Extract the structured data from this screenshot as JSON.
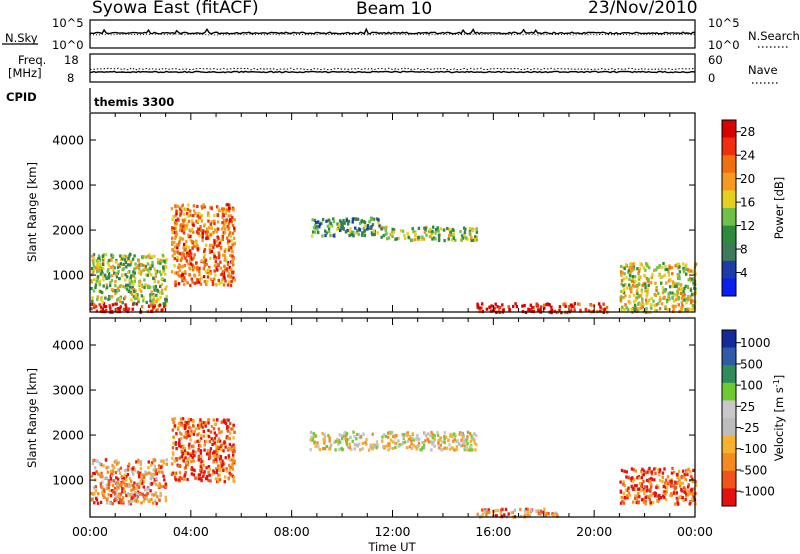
{
  "header": {
    "station": "Syowa East (fitACF)",
    "beam": "Beam 10",
    "date": "23/Nov/2010"
  },
  "top_panels": {
    "nsky_label": "N.Sky",
    "nsky_ticks": [
      "10^5",
      "10^0"
    ],
    "nsearch_label": "N.Search",
    "nsearch_ticks": [
      "10^5",
      "10^0"
    ],
    "freq_label_1": "Freq.",
    "freq_label_2": "[MHz]",
    "freq_ticks": [
      "18",
      "8"
    ],
    "nave_label": "Nave",
    "nave_ticks": [
      "60",
      "0"
    ],
    "cpid_label": "CPID",
    "cpid_value": "themis 3300"
  },
  "colors": {
    "power": [
      "#0a1ef0",
      "#1e3ca8",
      "#3c7a5a",
      "#2e8b3e",
      "#6fc04a",
      "#e6d01e",
      "#f59a1e",
      "#f07010",
      "#ee2e0c",
      "#d80000"
    ],
    "velocity": [
      "#e41010",
      "#f0541a",
      "#f58a20",
      "#f8b030",
      "#bdbdbd",
      "#c8c8c8",
      "#6fca2e",
      "#2e8b5a",
      "#2e5aa8",
      "#142a9a"
    ]
  },
  "chart_data": [
    {
      "type": "heatmap",
      "name": "power",
      "ylabel": "Slant Range [km]",
      "xlabel": "Time UT",
      "x_ticks": [
        "00:00",
        "04:00",
        "08:00",
        "12:00",
        "16:00",
        "20:00",
        "00:00"
      ],
      "xlim": [
        0,
        24
      ],
      "y_ticks": [
        "1000",
        "2000",
        "3000",
        "4000"
      ],
      "ylim": [
        180,
        4600
      ],
      "colorbar_label": "Power [dB]",
      "colorbar_ticks": [
        "4",
        "8",
        "12",
        "16",
        "20",
        "24",
        "28"
      ],
      "colorbar_range": [
        0,
        30
      ],
      "echo_regions": [
        {
          "t": [
            0.0,
            3.0
          ],
          "r": [
            200,
            400
          ],
          "level": 28
        },
        {
          "t": [
            0.0,
            3.0
          ],
          "r": [
            400,
            1500
          ],
          "level": 12
        },
        {
          "t": [
            3.2,
            5.7
          ],
          "r": [
            800,
            2600
          ],
          "level": 20
        },
        {
          "t": [
            8.7,
            11.5
          ],
          "r": [
            1900,
            2300
          ],
          "level": 8
        },
        {
          "t": [
            11.5,
            15.3
          ],
          "r": [
            1800,
            2100
          ],
          "level": 12
        },
        {
          "t": [
            15.3,
            18.5
          ],
          "r": [
            200,
            400
          ],
          "level": 28
        },
        {
          "t": [
            18.5,
            20.5
          ],
          "r": [
            200,
            400
          ],
          "level": 24
        },
        {
          "t": [
            21.0,
            24.0
          ],
          "r": [
            200,
            1300
          ],
          "level": 16
        }
      ]
    },
    {
      "type": "heatmap",
      "name": "velocity",
      "ylabel": "Slant Range [km]",
      "xlabel": "Time UT",
      "x_ticks": [
        "00:00",
        "04:00",
        "08:00",
        "12:00",
        "16:00",
        "20:00",
        "00:00"
      ],
      "xlim": [
        0,
        24
      ],
      "y_ticks": [
        "1000",
        "2000",
        "3000",
        "4000"
      ],
      "ylim": [
        180,
        4600
      ],
      "colorbar_label": "Velocity [m s",
      "colorbar_label_sup": "-1",
      "colorbar_label_end": "]",
      "colorbar_ticks": [
        "1000",
        "500",
        "100",
        "25",
        "-25",
        "-100",
        "-500",
        "-1000"
      ],
      "echo_regions": [
        {
          "t": [
            0.0,
            3.0
          ],
          "r": [
            500,
            1500
          ],
          "velocity": -100
        },
        {
          "t": [
            3.2,
            5.7
          ],
          "r": [
            1000,
            2400
          ],
          "velocity": -500
        },
        {
          "t": [
            8.7,
            15.3
          ],
          "r": [
            1700,
            2100
          ],
          "velocity": 0
        },
        {
          "t": [
            15.3,
            18.5
          ],
          "r": [
            200,
            400
          ],
          "velocity": -100
        },
        {
          "t": [
            21.0,
            24.0
          ],
          "r": [
            500,
            1300
          ],
          "velocity": -500
        }
      ]
    }
  ]
}
